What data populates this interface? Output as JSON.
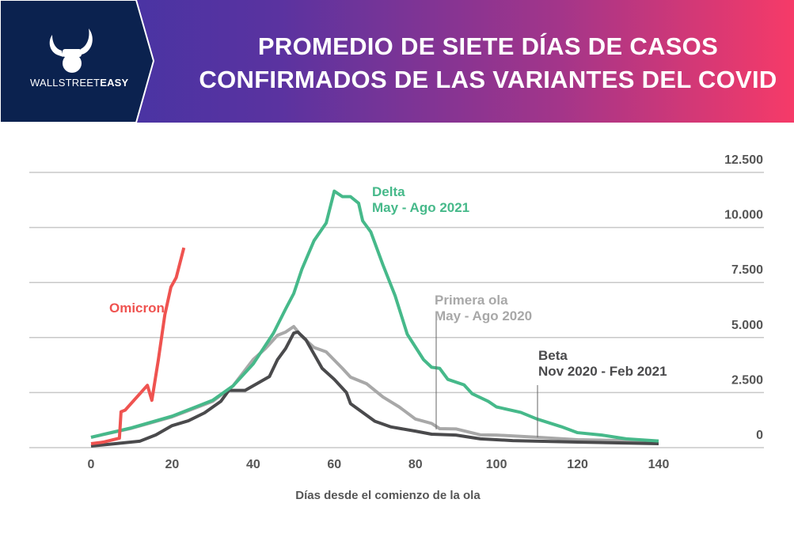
{
  "header": {
    "title_line1": "PROMEDIO DE SIETE DÍAS DE CASOS",
    "title_line2": "CONFIRMADOS DE LAS VARIANTES DEL COVID",
    "brand_light": "WALLSTREET",
    "brand_bold": "EASY"
  },
  "chart_data": {
    "type": "line",
    "title": "PROMEDIO DE SIETE DÍAS DE CASOS CONFIRMADOS DE LAS VARIANTES DEL COVID",
    "xlabel": "Días desde el comienzo de la ola",
    "ylabel": "",
    "xlim": [
      0,
      140
    ],
    "ylim": [
      0,
      12500
    ],
    "x_ticks": [
      "0",
      "20",
      "40",
      "60",
      "80",
      "100",
      "120",
      "140"
    ],
    "x_tick_values": [
      0,
      20,
      40,
      60,
      80,
      100,
      120,
      140
    ],
    "y_ticks": [
      "0",
      "2.500",
      "5.000",
      "7.500",
      "10.000",
      "12.500"
    ],
    "y_tick_values": [
      0,
      2500,
      5000,
      7500,
      10000,
      12500
    ],
    "grid": true,
    "y_axis_side": "right",
    "series": [
      {
        "name": "Omicron",
        "label_lines": [
          "Omicron"
        ],
        "color": "#ef5350",
        "points": [
          [
            0,
            180
          ],
          [
            3,
            250
          ],
          [
            7,
            430
          ],
          [
            7.4,
            1630
          ],
          [
            8.4,
            1700
          ],
          [
            13.9,
            2830
          ],
          [
            15,
            2150
          ],
          [
            16.6,
            3990
          ],
          [
            18.2,
            6030
          ],
          [
            19.7,
            7290
          ],
          [
            21,
            7720
          ],
          [
            22.9,
            9080
          ]
        ]
      },
      {
        "name": "Delta May - Ago 2021",
        "label_lines": [
          "Delta",
          "May - Ago 2021"
        ],
        "color": "#46b98a",
        "points": [
          [
            0,
            470
          ],
          [
            10,
            900
          ],
          [
            20,
            1430
          ],
          [
            30,
            2150
          ],
          [
            35,
            2800
          ],
          [
            40,
            3800
          ],
          [
            45,
            5200
          ],
          [
            48,
            6300
          ],
          [
            50,
            7000
          ],
          [
            52,
            8100
          ],
          [
            55,
            9400
          ],
          [
            58,
            10200
          ],
          [
            60,
            11650
          ],
          [
            62,
            11400
          ],
          [
            64,
            11400
          ],
          [
            66,
            11100
          ],
          [
            67,
            10300
          ],
          [
            69,
            9800
          ],
          [
            72,
            8300
          ],
          [
            75,
            6900
          ],
          [
            78,
            5150
          ],
          [
            82,
            4000
          ],
          [
            84,
            3650
          ],
          [
            86,
            3600
          ],
          [
            88,
            3100
          ],
          [
            92,
            2850
          ],
          [
            94,
            2450
          ],
          [
            98,
            2100
          ],
          [
            100,
            1850
          ],
          [
            106,
            1600
          ],
          [
            110,
            1300
          ],
          [
            116,
            950
          ],
          [
            120,
            680
          ],
          [
            126,
            570
          ],
          [
            132,
            400
          ],
          [
            140,
            300
          ]
        ]
      },
      {
        "name": "Primera ola May - Ago 2020",
        "label_lines": [
          "Primera ola",
          "May - Ago 2020"
        ],
        "color": "#a8a8a8",
        "points": [
          [
            0,
            470
          ],
          [
            10,
            880
          ],
          [
            20,
            1400
          ],
          [
            30,
            2100
          ],
          [
            35,
            2800
          ],
          [
            40,
            4000
          ],
          [
            43,
            4500
          ],
          [
            46,
            5100
          ],
          [
            48,
            5250
          ],
          [
            50,
            5500
          ],
          [
            52,
            5050
          ],
          [
            55,
            4550
          ],
          [
            58,
            4350
          ],
          [
            62,
            3600
          ],
          [
            64,
            3200
          ],
          [
            68,
            2900
          ],
          [
            72,
            2300
          ],
          [
            76,
            1850
          ],
          [
            80,
            1300
          ],
          [
            84,
            1100
          ],
          [
            86,
            860
          ],
          [
            90,
            850
          ],
          [
            96,
            580
          ],
          [
            100,
            570
          ],
          [
            110,
            470
          ],
          [
            120,
            360
          ],
          [
            140,
            290
          ]
        ]
      },
      {
        "name": "Beta Nov 2020 - Feb 2021",
        "label_lines": [
          "Beta",
          "Nov 2020 - Feb 2021"
        ],
        "color": "#4a4a4c",
        "points": [
          [
            0,
            70
          ],
          [
            12,
            290
          ],
          [
            16,
            580
          ],
          [
            20,
            1000
          ],
          [
            24,
            1220
          ],
          [
            28,
            1580
          ],
          [
            32,
            2100
          ],
          [
            34,
            2600
          ],
          [
            38,
            2600
          ],
          [
            44,
            3230
          ],
          [
            46,
            4000
          ],
          [
            48,
            4500
          ],
          [
            50,
            5200
          ],
          [
            51,
            5250
          ],
          [
            53,
            4900
          ],
          [
            55,
            4250
          ],
          [
            57,
            3600
          ],
          [
            60,
            3100
          ],
          [
            63,
            2500
          ],
          [
            64,
            2000
          ],
          [
            67,
            1600
          ],
          [
            70,
            1200
          ],
          [
            74,
            940
          ],
          [
            80,
            750
          ],
          [
            84,
            610
          ],
          [
            90,
            570
          ],
          [
            96,
            400
          ],
          [
            104,
            320
          ],
          [
            120,
            250
          ],
          [
            140,
            180
          ]
        ]
      }
    ]
  }
}
